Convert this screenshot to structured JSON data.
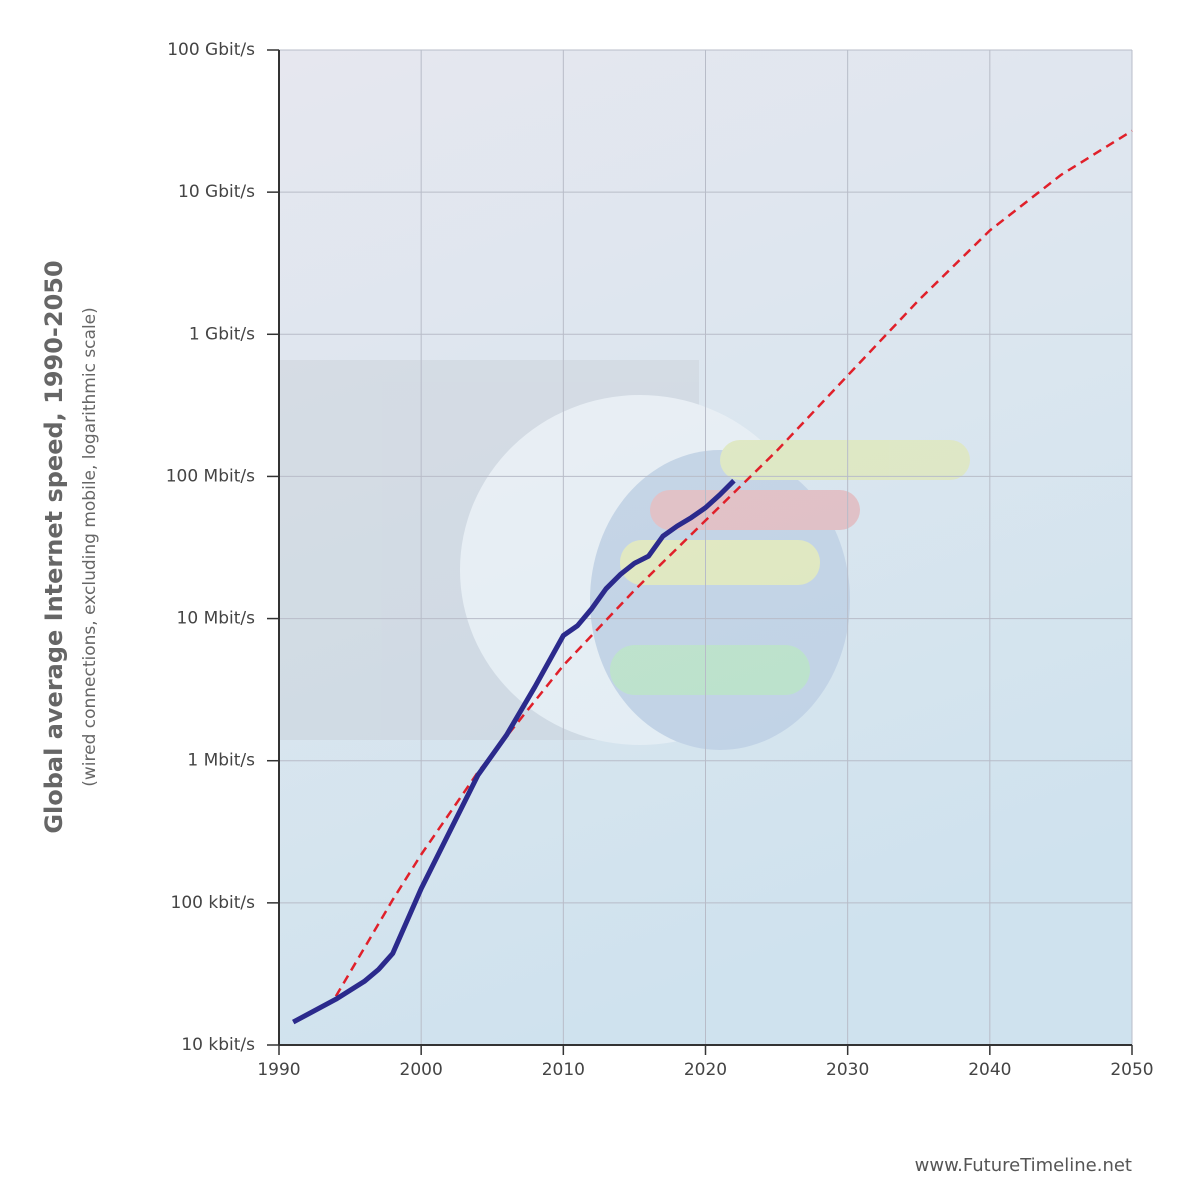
{
  "chart_data": {
    "type": "line",
    "title": "Global average Internet speed, 1990-2050",
    "subtitle": "(wired connections, excluding mobile, logarithmic scale)",
    "source": "www.FutureTimeline.net",
    "log_scale_y": true,
    "grid": true,
    "xlim": [
      1990,
      2050
    ],
    "xticks": [
      1990,
      2000,
      2010,
      2020,
      2030,
      2040,
      2050
    ],
    "ylim": [
      10,
      100000000
    ],
    "yticks": [
      {
        "value": 10,
        "label": "10 kbit/s"
      },
      {
        "value": 100,
        "label": "100 kbit/s"
      },
      {
        "value": 1000,
        "label": "1 Mbit/s"
      },
      {
        "value": 10000,
        "label": "10 Mbit/s"
      },
      {
        "value": 100000,
        "label": "100 Mbit/s"
      },
      {
        "value": 1000000,
        "label": "1 Gbit/s"
      },
      {
        "value": 10000000,
        "label": "10 Gbit/s"
      },
      {
        "value": 100000000,
        "label": "100 Gbit/s"
      }
    ],
    "series": [
      {
        "color": "#2b2a8c",
        "style": "solid",
        "x": [
          1991,
          1994,
          1996,
          1997,
          1998,
          2000,
          2002,
          2004,
          2006,
          2008,
          2010,
          2011,
          2012,
          2013,
          2014,
          2015,
          2016,
          2017,
          2018,
          2019,
          2020,
          2021,
          2022
        ],
        "values": [
          14.5,
          21,
          28,
          34,
          44,
          126,
          316,
          794,
          1514,
          3311,
          7586,
          8913,
          11750,
          16200,
          20400,
          24500,
          27500,
          38000,
          44700,
          51300,
          60300,
          74100,
          93300
        ]
      },
      {
        "color": "#e0202a",
        "style": "dashed",
        "x": [
          1994,
          1998,
          2000,
          2004,
          2010,
          2015,
          2020,
          2025,
          2030,
          2035,
          2040,
          2045,
          2050
        ],
        "values": [
          22,
          105,
          219,
          832,
          4677,
          15800,
          49000,
          151000,
          513000,
          1740000,
          5370000,
          13200000,
          27000000
        ]
      }
    ]
  }
}
